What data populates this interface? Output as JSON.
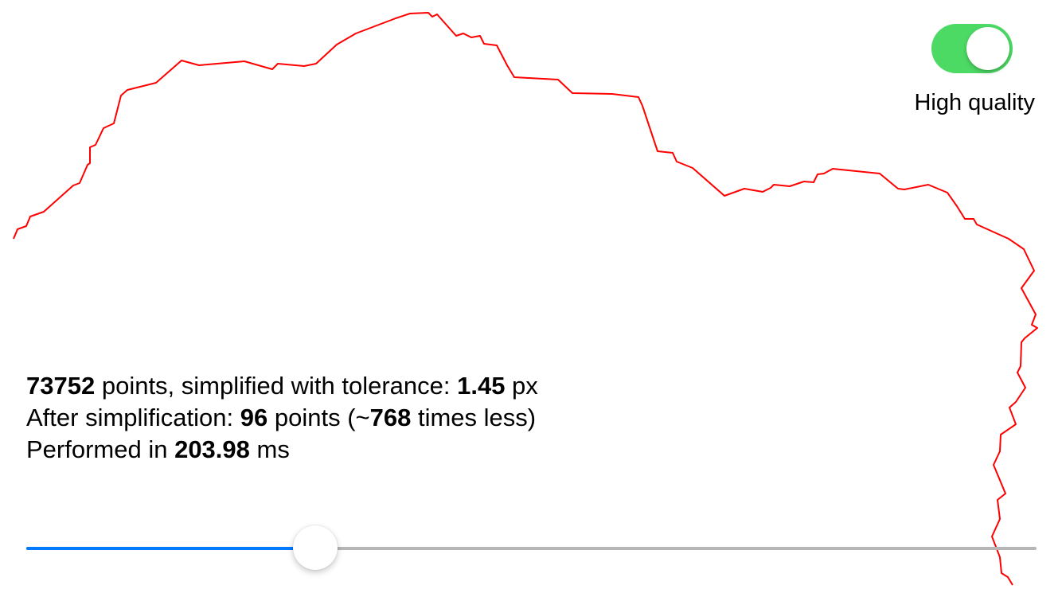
{
  "colors": {
    "path": "#ff0000",
    "toggle_on": "#4cd964",
    "slider_fill": "#007aff",
    "slider_track": "#b6b6b6"
  },
  "toggle": {
    "label": "High quality",
    "on": true
  },
  "stats": {
    "line1": {
      "points": "73752",
      "text_a": " points, simplified with tolerance: ",
      "tolerance": "1.45",
      "text_b": " px"
    },
    "line2": {
      "text_a": "After simplification: ",
      "points": "96",
      "text_b": " points (~",
      "factor": "768",
      "text_c": " times less)"
    },
    "line3": {
      "text_a": "Performed in ",
      "time": "203.98",
      "text_b": " ms"
    }
  },
  "slider": {
    "value": 0.286
  },
  "path_icon": "simplified-polyline"
}
